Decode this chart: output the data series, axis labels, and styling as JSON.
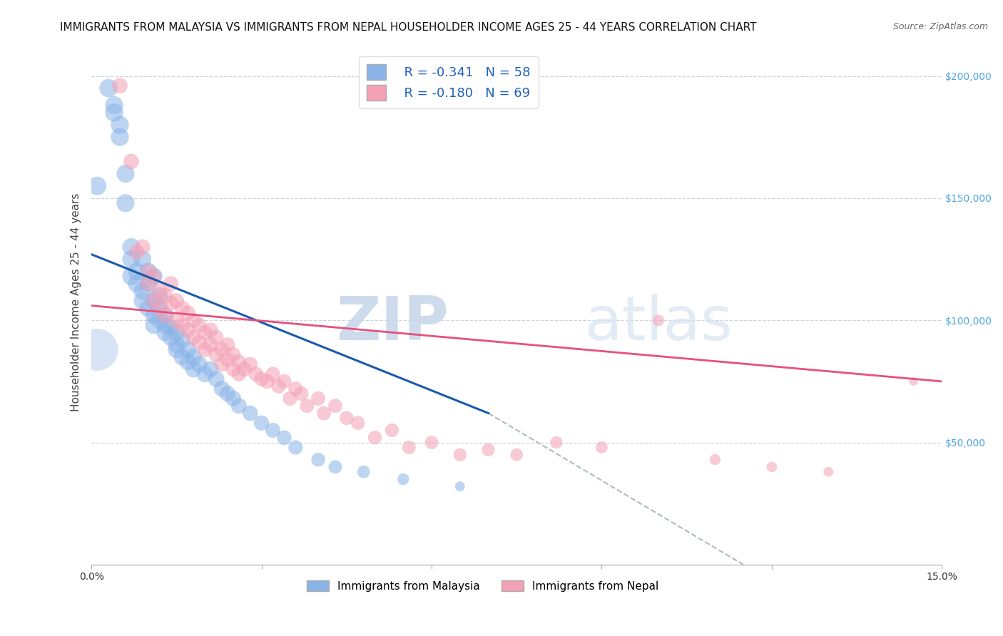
{
  "title": "IMMIGRANTS FROM MALAYSIA VS IMMIGRANTS FROM NEPAL HOUSEHOLDER INCOME AGES 25 - 44 YEARS CORRELATION CHART",
  "source": "Source: ZipAtlas.com",
  "ylabel": "Householder Income Ages 25 - 44 years",
  "yticks": [
    0,
    50000,
    100000,
    150000,
    200000
  ],
  "ytick_labels": [
    "",
    "$50,000",
    "$100,000",
    "$150,000",
    "$200,000"
  ],
  "xlim": [
    0,
    0.15
  ],
  "ylim": [
    0,
    215000
  ],
  "malaysia_color": "#8ab4e8",
  "nepal_color": "#f4a0b5",
  "malaysia_line_color": "#1a5aad",
  "nepal_line_color": "#e8507a",
  "dashed_line_color": "#b0b8c8",
  "legend_r_malaysia": "R = -0.341",
  "legend_n_malaysia": "N = 58",
  "legend_r_nepal": "R = -0.180",
  "legend_n_nepal": "N = 69",
  "legend_label_malaysia": "Immigrants from Malaysia",
  "legend_label_nepal": "Immigrants from Nepal",
  "malaysia_x": [
    0.001,
    0.003,
    0.004,
    0.004,
    0.005,
    0.005,
    0.006,
    0.006,
    0.007,
    0.007,
    0.007,
    0.008,
    0.008,
    0.009,
    0.009,
    0.009,
    0.01,
    0.01,
    0.01,
    0.011,
    0.011,
    0.011,
    0.011,
    0.012,
    0.012,
    0.012,
    0.013,
    0.013,
    0.013,
    0.014,
    0.014,
    0.015,
    0.015,
    0.015,
    0.016,
    0.016,
    0.017,
    0.017,
    0.018,
    0.018,
    0.019,
    0.02,
    0.021,
    0.022,
    0.023,
    0.024,
    0.025,
    0.026,
    0.028,
    0.03,
    0.032,
    0.034,
    0.036,
    0.04,
    0.043,
    0.048,
    0.055,
    0.065
  ],
  "malaysia_y": [
    155000,
    195000,
    185000,
    188000,
    175000,
    180000,
    160000,
    148000,
    130000,
    125000,
    118000,
    120000,
    115000,
    112000,
    108000,
    125000,
    120000,
    115000,
    105000,
    118000,
    108000,
    102000,
    98000,
    110000,
    105000,
    100000,
    102000,
    98000,
    95000,
    97000,
    93000,
    95000,
    90000,
    88000,
    92000,
    85000,
    88000,
    83000,
    85000,
    80000,
    82000,
    78000,
    80000,
    76000,
    72000,
    70000,
    68000,
    65000,
    62000,
    58000,
    55000,
    52000,
    48000,
    43000,
    40000,
    38000,
    35000,
    32000
  ],
  "nepal_x": [
    0.005,
    0.007,
    0.008,
    0.009,
    0.01,
    0.01,
    0.011,
    0.011,
    0.012,
    0.012,
    0.013,
    0.013,
    0.014,
    0.014,
    0.015,
    0.015,
    0.016,
    0.016,
    0.017,
    0.017,
    0.018,
    0.018,
    0.019,
    0.019,
    0.02,
    0.02,
    0.021,
    0.021,
    0.022,
    0.022,
    0.023,
    0.023,
    0.024,
    0.024,
    0.025,
    0.025,
    0.026,
    0.026,
    0.027,
    0.028,
    0.029,
    0.03,
    0.031,
    0.032,
    0.033,
    0.034,
    0.035,
    0.036,
    0.037,
    0.038,
    0.04,
    0.041,
    0.043,
    0.045,
    0.047,
    0.05,
    0.053,
    0.056,
    0.06,
    0.065,
    0.07,
    0.075,
    0.082,
    0.09,
    0.1,
    0.11,
    0.12,
    0.13,
    0.145
  ],
  "nepal_y": [
    196000,
    165000,
    128000,
    130000,
    120000,
    115000,
    118000,
    108000,
    112000,
    105000,
    110000,
    102000,
    115000,
    107000,
    108000,
    100000,
    105000,
    98000,
    103000,
    96000,
    100000,
    93000,
    98000,
    91000,
    95000,
    88000,
    96000,
    90000,
    93000,
    86000,
    88000,
    82000,
    90000,
    84000,
    86000,
    80000,
    83000,
    78000,
    80000,
    82000,
    78000,
    76000,
    75000,
    78000,
    73000,
    75000,
    68000,
    72000,
    70000,
    65000,
    68000,
    62000,
    65000,
    60000,
    58000,
    52000,
    55000,
    48000,
    50000,
    45000,
    47000,
    45000,
    50000,
    48000,
    100000,
    43000,
    40000,
    38000,
    75000
  ],
  "watermark_zip": "ZIP",
  "watermark_atlas": "atlas",
  "background_color": "#ffffff",
  "grid_color": "#c8d0dc",
  "title_fontsize": 11,
  "axis_label_fontsize": 11,
  "tick_fontsize": 10,
  "malaysia_line_x": [
    0.0,
    0.07
  ],
  "malaysia_line_y": [
    127000,
    62000
  ],
  "nepal_line_x": [
    0.0,
    0.15
  ],
  "nepal_line_y": [
    106000,
    75000
  ],
  "dashed_line_x": [
    0.07,
    0.115
  ],
  "dashed_line_y": [
    62000,
    0
  ]
}
